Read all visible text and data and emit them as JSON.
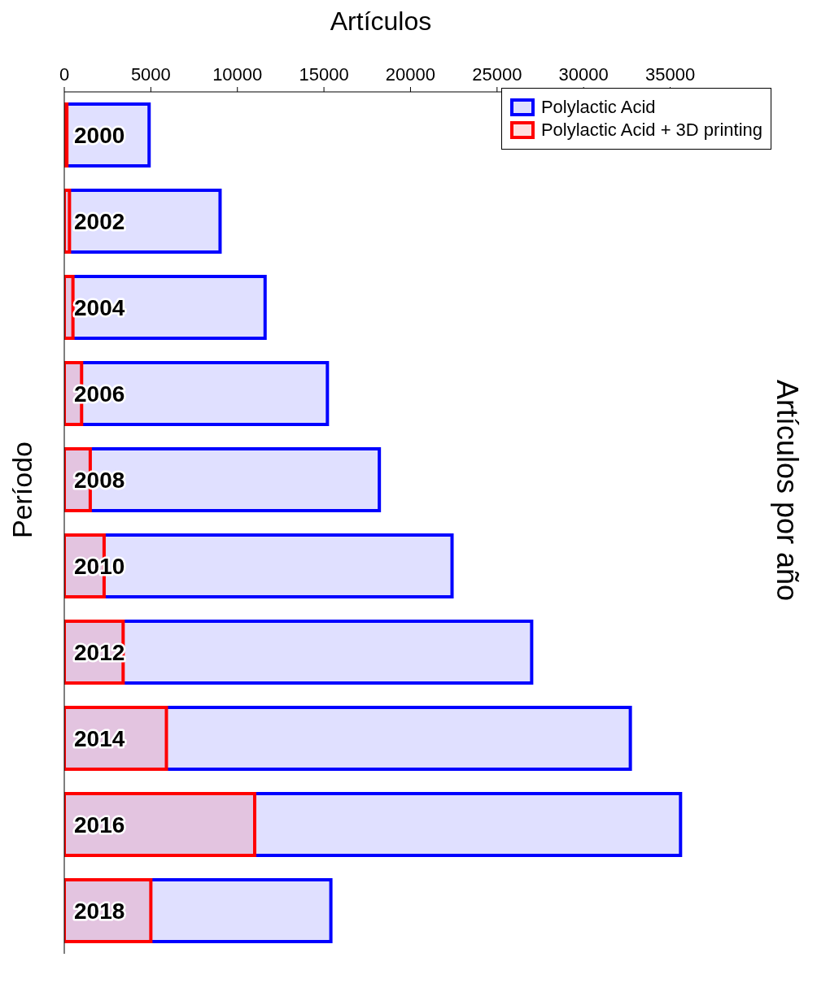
{
  "chart_data": {
    "type": "bar",
    "orientation": "horizontal",
    "title": "Artículos por año",
    "xlabel": "Artículos",
    "ylabel": "Período",
    "categories": [
      "2000",
      "2002",
      "2004",
      "2006",
      "2008",
      "2010",
      "2012",
      "2014",
      "2016",
      "2018"
    ],
    "series": [
      {
        "name": "Polylactic Acid",
        "color": "#0000ff",
        "values": [
          4900,
          9000,
          11600,
          15200,
          18200,
          22400,
          27000,
          32700,
          35600,
          15400
        ]
      },
      {
        "name": "Polylactic Acid + 3D printing",
        "color": "#ff0000",
        "values": [
          150,
          300,
          500,
          1000,
          1500,
          2300,
          3400,
          5900,
          11000,
          5000
        ]
      }
    ],
    "xlim": [
      0,
      38500
    ],
    "xticks": [
      0,
      5000,
      10000,
      15000,
      20000,
      25000,
      30000,
      35000
    ],
    "legend": "top right",
    "grid": false
  }
}
